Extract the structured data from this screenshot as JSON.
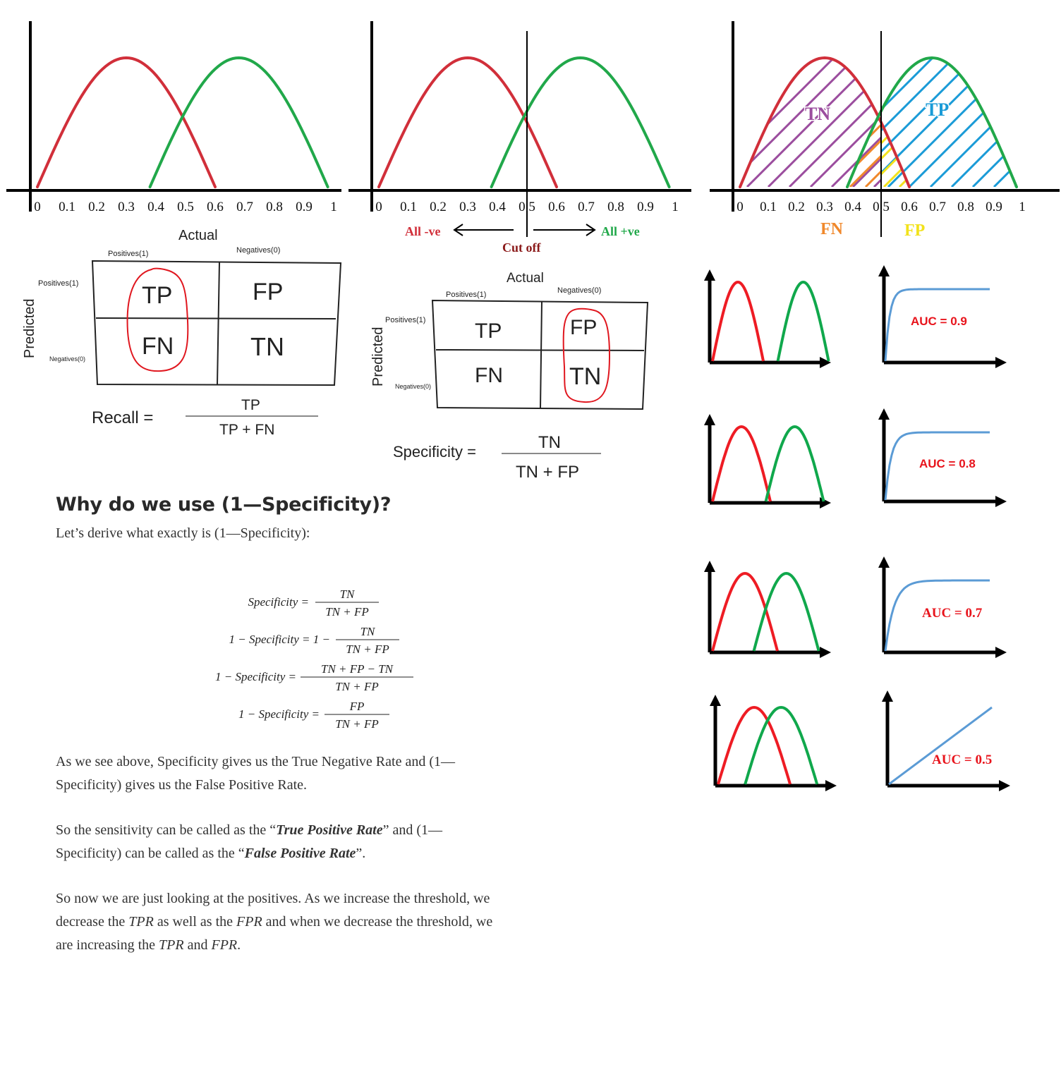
{
  "colors": {
    "negative_curve": "#d12f3a",
    "positive_curve": "#21a84a",
    "tn_hatch": "#9b4d9e",
    "tp_hatch": "#1a9bd7",
    "fn_hatch": "#f0882b",
    "fp_hatch": "#f2e21c",
    "roc_curve": "#5b9bd5",
    "auc_label": "#e8141c",
    "circle": "#e0171f"
  },
  "distribution_axis": {
    "ticks": [
      "0",
      "0.1",
      "0.2",
      "0.3",
      "0.4",
      "0.5",
      "0.6",
      "0.7",
      "0.8",
      "0.9",
      "1"
    ],
    "negative_peak": 0.33,
    "positive_peak": 0.7,
    "cutoff": 0.5
  },
  "panel2": {
    "all_neg": "All -ve",
    "all_pos": "All +ve",
    "cutoff": "Cut off"
  },
  "panel3": {
    "tn": "TN",
    "tp": "TP",
    "fn": "FN",
    "fp": "FP"
  },
  "matrix1": {
    "actual": "Actual",
    "predicted": "Predicted",
    "col_pos": "Positives(1)",
    "col_neg": "Negatives(0)",
    "row_pos": "Positives(1)",
    "row_neg": "Negatives(0)",
    "tp": "TP",
    "fp": "FP",
    "fn": "FN",
    "tn": "TN",
    "formula_lhs": "Recall =",
    "numerator": "TP",
    "denominator": "TP + FN"
  },
  "matrix2": {
    "actual": "Actual",
    "predicted": "Predicted",
    "col_pos": "Positives(1)",
    "col_neg": "Negatives(0)",
    "row_pos": "Positives(1)",
    "row_neg": "Negatives(0)",
    "tp": "TP",
    "fp": "FP",
    "fn": "FN",
    "tn": "TN",
    "formula_lhs": "Specificity =",
    "numerator": "TN",
    "denominator": "TN + FP"
  },
  "auc_rows": [
    {
      "label": "AUC = 0.9",
      "auc": 0.9
    },
    {
      "label": "AUC = 0.8",
      "auc": 0.8
    },
    {
      "label": "AUC = 0.7",
      "auc": 0.7
    },
    {
      "label": "AUC = 0.5",
      "auc": 0.5
    }
  ],
  "derivation": [
    {
      "lhs": "Specificity =",
      "num": "TN",
      "den": "TN + FP"
    },
    {
      "lhs": "1 − Specificity = 1 −",
      "num": "TN",
      "den": "TN + FP"
    },
    {
      "lhs": "1 − Specificity =",
      "num": "TN + FP − TN",
      "den": "TN + FP"
    },
    {
      "lhs": "1 − Specificity =",
      "num": "FP",
      "den": "TN + FP"
    }
  ],
  "article": {
    "heading": "Why do we use (1—Specificity)?",
    "lead": "Let’s derive what exactly is (1—Specificity):",
    "p1_line1": "As we see above, Specificity gives us the True Negative Rate and (1—",
    "p1_line2": "Specificity) gives us the False Positive Rate.",
    "p2_a": "So the sensitivity can be called as the “",
    "p2_tpr": "True Positive Rate",
    "p2_b": "” and (1—",
    "p2_c": "Specificity) can be called as the “",
    "p2_fpr": "False Positive Rate",
    "p2_d": "”.",
    "p3_line1": "So now we are just looking at the positives. As we increase the threshold, we",
    "p3_a": "decrease the ",
    "p3_tpr": "TPR",
    "p3_b": " as well as the ",
    "p3_fpr": "FPR",
    "p3_c": " and when we decrease the threshold, we",
    "p3_d": "are increasing the ",
    "p3_tpr2": "TPR",
    "p3_e": " and ",
    "p3_fpr2": "FPR",
    "p3_f": "."
  }
}
